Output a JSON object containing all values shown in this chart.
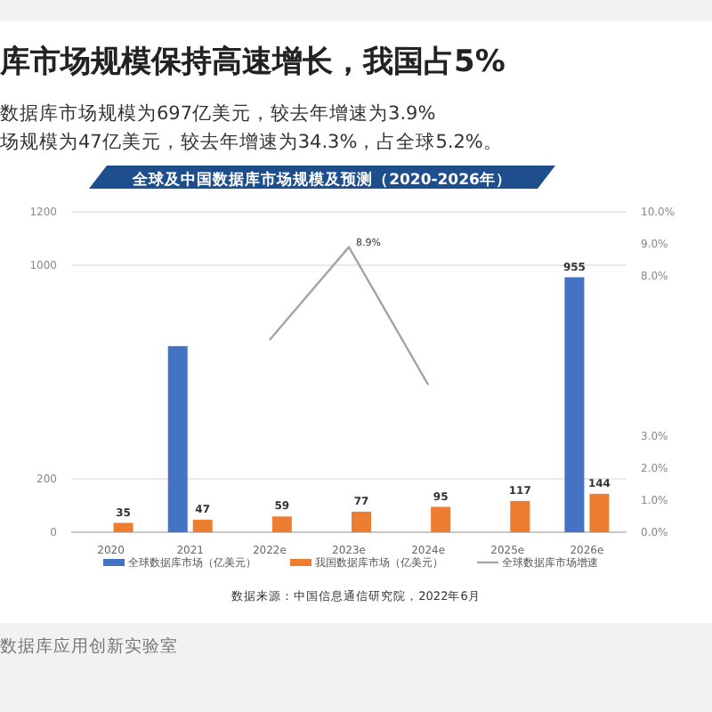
{
  "chart_data": {
    "type": "bar",
    "title": "库市场规模保持高速增长，我国占5%",
    "subtitle": "数据库市场规模为697亿美元，较去年增速为3.9%",
    "annotations": [
      "场规模为47亿美元，较去年增速为34.3%，占全球5.2%。",
      "全球及中国数据库市场规模及预测（2020-2026年）",
      "数据来源：中国信息通信研究院，2022年6月",
      "数据库应用创新实验室"
    ],
    "categories": [
      "2020",
      "2021",
      "2022e",
      "2023e",
      "2024e",
      "2025e",
      "2026e"
    ],
    "series": [
      {
        "name": "全球数据库市场（亿美元）",
        "color": "#4472c4",
        "values": [
          null,
          697,
          null,
          null,
          null,
          null,
          955
        ],
        "value_labels": [
          null,
          null,
          null,
          null,
          null,
          null,
          "955"
        ]
      },
      {
        "name": "我国数据库市场（亿美元）",
        "color": "#ed7d31",
        "values": [
          35,
          47,
          59,
          77,
          95,
          117,
          144
        ],
        "value_labels": [
          "35",
          "47",
          "59",
          "77",
          "95",
          "117",
          "144"
        ]
      },
      {
        "name": "全球数据库市场增速",
        "type": "line",
        "axis": "y2",
        "color": "#a5a5a5",
        "values": [
          null,
          null,
          6.0,
          8.9,
          4.6,
          null,
          null
        ],
        "value_labels": [
          null,
          null,
          null,
          "8.9%",
          null,
          null,
          null
        ]
      }
    ],
    "ylim": [
      0,
      1200
    ],
    "yticks": [
      0,
      200,
      1000,
      1200
    ],
    "y2lim": [
      0,
      10
    ],
    "y2ticks": [
      {
        "value": 0,
        "label": "0.0%"
      },
      {
        "value": 1,
        "label": "1.0%"
      },
      {
        "value": 2,
        "label": "2.0%"
      },
      {
        "value": 3,
        "label": "3.0%"
      },
      {
        "value": 8,
        "label": "8.0%"
      },
      {
        "value": 9,
        "label": "9.0%"
      },
      {
        "value": 10,
        "label": "10.0%"
      }
    ],
    "grid": "y",
    "legend": "bottom",
    "marker": "none"
  }
}
